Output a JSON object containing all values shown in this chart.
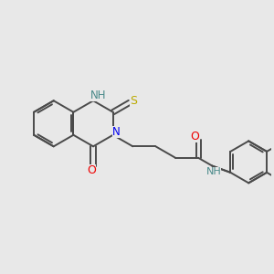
{
  "background_color": "#e8e8e8",
  "bond_color": "#4a4a4a",
  "nitrogen_color": "#0000ee",
  "oxygen_color": "#ee0000",
  "sulfur_color": "#bbaa00",
  "nh_color": "#4a8a8a",
  "figsize": [
    3.0,
    3.0
  ],
  "dpi": 100,
  "xlim": [
    0,
    10
  ],
  "ylim": [
    0,
    10
  ]
}
